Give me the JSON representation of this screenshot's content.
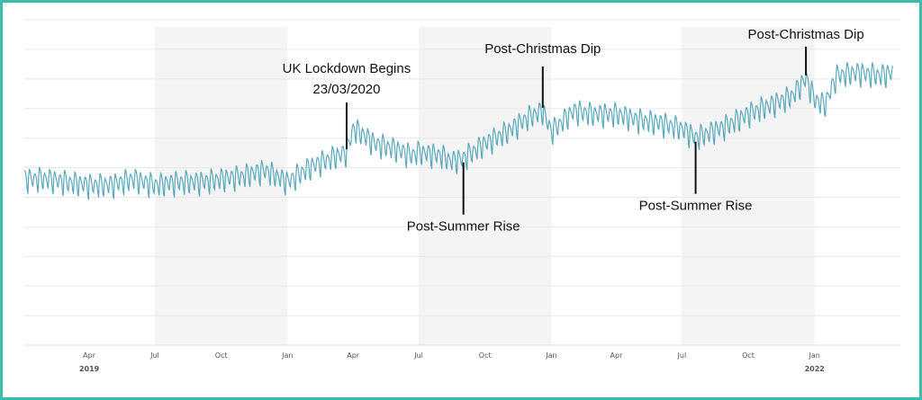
{
  "chart_data": {
    "type": "line",
    "title": "",
    "xlabel": "",
    "ylabel": "",
    "x_range": [
      "2019-01-01",
      "2022-04-30"
    ],
    "y_range": [
      0,
      11
    ],
    "grid": true,
    "legend": "none",
    "colors": {
      "line": "#5aaabc",
      "band": "#f4f4f4",
      "grid": "#e8e8e8",
      "border": "#3dbcb0",
      "annotation": "#111111"
    },
    "shaded_periods": [
      {
        "start": "2019-07-01",
        "end": "2020-01-01"
      },
      {
        "start": "2020-07-01",
        "end": "2021-01-01"
      },
      {
        "start": "2021-07-01",
        "end": "2022-01-01"
      }
    ],
    "x_ticks": [
      {
        "label": "Apr",
        "date": "2019-04-01"
      },
      {
        "label": "Jul",
        "date": "2019-07-01"
      },
      {
        "label": "Oct",
        "date": "2019-10-01"
      },
      {
        "label": "Jan",
        "date": "2020-01-01"
      },
      {
        "label": "Apr",
        "date": "2020-04-01"
      },
      {
        "label": "Jul",
        "date": "2020-07-01"
      },
      {
        "label": "Oct",
        "date": "2020-10-01"
      },
      {
        "label": "Jan",
        "date": "2021-01-01"
      },
      {
        "label": "Apr",
        "date": "2021-04-01"
      },
      {
        "label": "Jul",
        "date": "2021-07-01"
      },
      {
        "label": "Oct",
        "date": "2021-10-01"
      },
      {
        "label": "Jan",
        "date": "2022-01-01"
      }
    ],
    "year_labels": [
      {
        "label": "2019",
        "date": "2019-04-01"
      },
      {
        "label": "2022",
        "date": "2022-01-01"
      }
    ],
    "series": [
      {
        "points": [
          [
            "2019-01-01",
            5.6
          ],
          [
            "2019-02-01",
            5.6
          ],
          [
            "2019-03-01",
            5.5
          ],
          [
            "2019-04-01",
            5.4
          ],
          [
            "2019-05-01",
            5.4
          ],
          [
            "2019-06-01",
            5.6
          ],
          [
            "2019-07-01",
            5.4
          ],
          [
            "2019-08-01",
            5.5
          ],
          [
            "2019-09-01",
            5.5
          ],
          [
            "2019-10-01",
            5.6
          ],
          [
            "2019-11-01",
            5.7
          ],
          [
            "2019-12-01",
            5.9
          ],
          [
            "2020-01-01",
            5.5
          ],
          [
            "2020-02-01",
            6.0
          ],
          [
            "2020-03-01",
            6.3
          ],
          [
            "2020-03-23",
            6.5
          ],
          [
            "2020-04-01",
            7.3
          ],
          [
            "2020-04-15",
            7.1
          ],
          [
            "2020-05-01",
            6.8
          ],
          [
            "2020-06-01",
            6.6
          ],
          [
            "2020-06-20",
            6.4
          ],
          [
            "2020-07-01",
            6.5
          ],
          [
            "2020-08-01",
            6.4
          ],
          [
            "2020-08-15",
            6.2
          ],
          [
            "2020-09-01",
            6.3
          ],
          [
            "2020-10-01",
            6.8
          ],
          [
            "2020-11-01",
            7.2
          ],
          [
            "2020-12-01",
            7.7
          ],
          [
            "2020-12-20",
            7.9
          ],
          [
            "2021-01-01",
            7.2
          ],
          [
            "2021-02-01",
            7.9
          ],
          [
            "2021-03-01",
            7.8
          ],
          [
            "2021-04-01",
            7.8
          ],
          [
            "2021-05-01",
            7.6
          ],
          [
            "2021-06-01",
            7.5
          ],
          [
            "2021-07-01",
            7.3
          ],
          [
            "2021-07-20",
            7.0
          ],
          [
            "2021-08-01",
            7.1
          ],
          [
            "2021-09-01",
            7.4
          ],
          [
            "2021-10-01",
            7.8
          ],
          [
            "2021-11-01",
            8.1
          ],
          [
            "2021-12-01",
            8.4
          ],
          [
            "2021-12-20",
            9.0
          ],
          [
            "2022-01-01",
            8.3
          ],
          [
            "2022-01-15",
            8.1
          ],
          [
            "2022-02-01",
            9.1
          ],
          [
            "2022-03-01",
            9.2
          ],
          [
            "2022-04-01",
            9.1
          ],
          [
            "2022-04-20",
            9.2
          ]
        ]
      }
    ],
    "annotations": [
      {
        "text": "UK Lockdown Begins",
        "date": "2020-03-23",
        "value": 6.5,
        "position": "above"
      },
      {
        "text": "23/03/2020",
        "date": "2020-03-23",
        "value": 6.5,
        "position": "above"
      },
      {
        "text": "Post-Summer Rise",
        "date": "2020-09-01",
        "value": 6.3,
        "position": "below"
      },
      {
        "text": "Post-Christmas Dip",
        "date": "2020-12-20",
        "value": 7.9,
        "position": "above"
      },
      {
        "text": "Post-Summer Rise",
        "date": "2021-07-20",
        "value": 7.0,
        "position": "below"
      },
      {
        "text": "Post-Christmas Dip",
        "date": "2021-12-20",
        "value": 9.0,
        "position": "above"
      }
    ]
  }
}
